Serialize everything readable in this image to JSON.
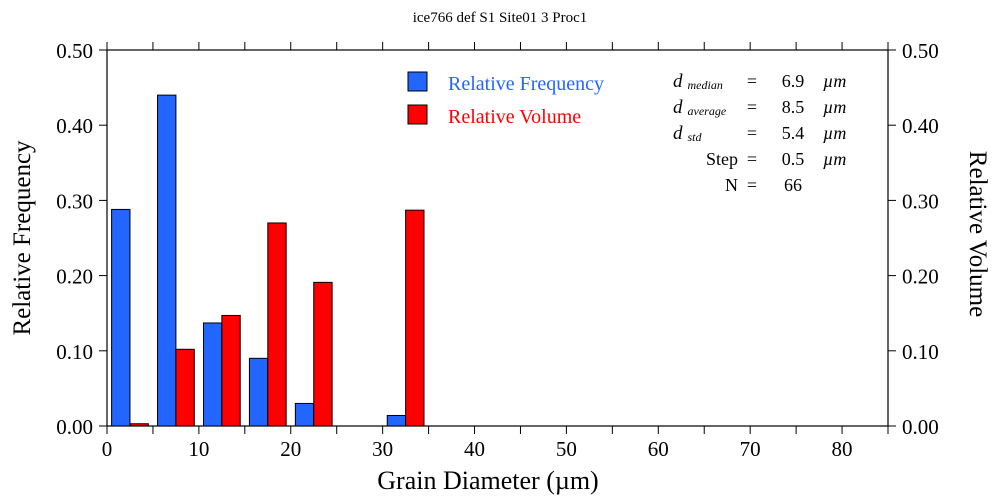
{
  "chart_data": {
    "type": "bar",
    "title": "ice766 def S1 Site01 3 Proc1",
    "xlabel": "Grain Diameter (µm)",
    "ylabel": "Relative Frequency",
    "y2label": "Relative Volume",
    "xlim": [
      0,
      85
    ],
    "ylim": [
      0,
      0.5
    ],
    "xticks": [
      "0",
      "10",
      "20",
      "30",
      "40",
      "50",
      "60",
      "70",
      "80"
    ],
    "yticks": [
      "0.00",
      "0.10",
      "0.20",
      "0.30",
      "0.40",
      "0.50"
    ],
    "bin_width": 5,
    "bin_starts": [
      0,
      5,
      10,
      15,
      20,
      25,
      30
    ],
    "series": [
      {
        "name": "Relative Frequency",
        "color": "#2266ff",
        "values": [
          0.288,
          0.44,
          0.137,
          0.09,
          0.03,
          0,
          0.014
        ]
      },
      {
        "name": "Relative Volume",
        "color": "#ff0000",
        "values": [
          0.003,
          0.102,
          0.147,
          0.27,
          0.191,
          0,
          0.287
        ]
      }
    ],
    "legend_position": "top-center",
    "stats": [
      {
        "label": "d",
        "sub": "median",
        "eq": "=",
        "value": "6.9",
        "unit": "µm"
      },
      {
        "label": "d",
        "sub": "average",
        "eq": "=",
        "value": "8.5",
        "unit": "µm"
      },
      {
        "label": "d",
        "sub": "std",
        "eq": "=",
        "value": "5.4",
        "unit": "µm"
      },
      {
        "label": "Step",
        "sub": "",
        "eq": "=",
        "value": "0.5",
        "unit": "µm"
      },
      {
        "label": "N",
        "sub": "",
        "eq": "=",
        "value": "66",
        "unit": ""
      }
    ]
  }
}
